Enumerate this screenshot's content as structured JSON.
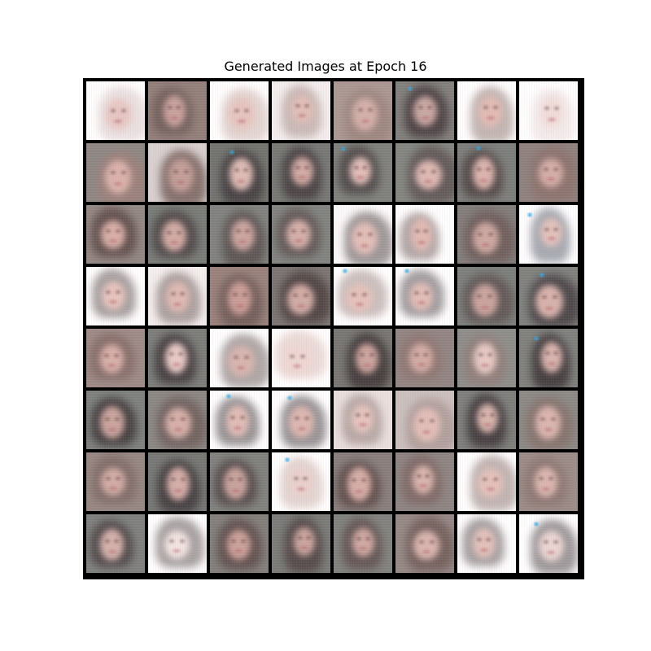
{
  "title": "Generated Images at Epoch 16",
  "grid": {
    "rows": 8,
    "cols": 8,
    "tiles": [
      {
        "bg": "#ffffff",
        "hair": "#d8c8c8",
        "skin": "#e6c6c2",
        "tone": "light"
      },
      {
        "bg": "#8f7d77",
        "hair": "#6e5c58",
        "skin": "#c7a09b",
        "tone": "mid"
      },
      {
        "bg": "#ffffff",
        "hair": "#c9b3ab",
        "skin": "#e5c3bd",
        "tone": "light"
      },
      {
        "bg": "#f2eeee",
        "hair": "#a78f88",
        "skin": "#e0bdb6",
        "tone": "light"
      },
      {
        "bg": "#a89690",
        "hair": "#9a847d",
        "skin": "#d2aea8",
        "tone": "mid"
      },
      {
        "bg": "#7d7d79",
        "hair": "#453c3e",
        "skin": "#c7a6a1",
        "tone": "dark",
        "glint": true
      },
      {
        "bg": "#ffffff",
        "hair": "#8f7a73",
        "skin": "#e1bab3",
        "tone": "light"
      },
      {
        "bg": "#ffffff",
        "hair": "#e8dcdc",
        "skin": "#f0dcd8",
        "tone": "light"
      },
      {
        "bg": "#8a8580",
        "hair": "#9b7f79",
        "skin": "#d9b1aa",
        "tone": "mid"
      },
      {
        "bg": "#d7d0cf",
        "hair": "#7a6560",
        "skin": "#c19c96",
        "tone": "mid"
      },
      {
        "bg": "#6e716c",
        "hair": "#3f3b3d",
        "skin": "#dcbab3",
        "tone": "dark",
        "glint": true
      },
      {
        "bg": "#727571",
        "hair": "#433d3f",
        "skin": "#cfa9a2",
        "tone": "dark"
      },
      {
        "bg": "#7b7f7a",
        "hair": "#4b4646",
        "skin": "#e0bdb6",
        "tone": "dark",
        "glint": true
      },
      {
        "bg": "#7f837f",
        "hair": "#5c5453",
        "skin": "#dcb7b0",
        "tone": "mid"
      },
      {
        "bg": "#787c78",
        "hair": "#4d4443",
        "skin": "#d9b2ab",
        "tone": "dark",
        "glint": true
      },
      {
        "bg": "#8b7f7b",
        "hair": "#8a716b",
        "skin": "#d3aca6",
        "tone": "mid"
      },
      {
        "bg": "#8f8581",
        "hair": "#5b4a47",
        "skin": "#d6ada6",
        "tone": "mid"
      },
      {
        "bg": "#757a75",
        "hair": "#4a4444",
        "skin": "#d0a9a2",
        "tone": "dark"
      },
      {
        "bg": "#7c807c",
        "hair": "#57504f",
        "skin": "#c9a39d",
        "tone": "mid"
      },
      {
        "bg": "#7d817d",
        "hair": "#5d5453",
        "skin": "#d3aea7",
        "tone": "mid"
      },
      {
        "bg": "#fbfafa",
        "hair": "#4e4646",
        "skin": "#e1bdb6",
        "tone": "light"
      },
      {
        "bg": "#ffffff",
        "hair": "#6f5f5c",
        "skin": "#e0b9b2",
        "tone": "light"
      },
      {
        "bg": "#7e7a77",
        "hair": "#6a5a57",
        "skin": "#cba59f",
        "tone": "mid"
      },
      {
        "bg": "#ffffff",
        "hair": "#5b6470",
        "skin": "#e2c1ba",
        "tone": "light",
        "glint": true
      },
      {
        "bg": "#ffffff",
        "hair": "#5c5251",
        "skin": "#e6c3bc",
        "tone": "light"
      },
      {
        "bg": "#f3efee",
        "hair": "#6e5f5c",
        "skin": "#deb8b1",
        "tone": "light"
      },
      {
        "bg": "#957f78",
        "hair": "#6d5a56",
        "skin": "#c89b94",
        "tone": "mid"
      },
      {
        "bg": "#77726f",
        "hair": "#4b403f",
        "skin": "#cfaaa3",
        "tone": "dark"
      },
      {
        "bg": "#ffffff",
        "hair": "#9d8b86",
        "skin": "#e4c1ba",
        "tone": "light",
        "glint": true
      },
      {
        "bg": "#ffffff",
        "hair": "#514c50",
        "skin": "#e1bcb5",
        "tone": "light",
        "glint": true
      },
      {
        "bg": "#787d79",
        "hair": "#5c5352",
        "skin": "#c8a29c",
        "tone": "mid"
      },
      {
        "bg": "#7c7f7b",
        "hair": "#454043",
        "skin": "#d6b1aa",
        "tone": "dark",
        "glint": true
      },
      {
        "bg": "#9a8984",
        "hair": "#836b66",
        "skin": "#d5aea7",
        "tone": "mid"
      },
      {
        "bg": "#777a76",
        "hair": "#3f393b",
        "skin": "#e6c9c4",
        "tone": "dark"
      },
      {
        "bg": "#ffffff",
        "hair": "#6a5f5d",
        "skin": "#d6b4ad",
        "tone": "light"
      },
      {
        "bg": "#ffffff",
        "hair": "#d9bdb6",
        "skin": "#eed6d1",
        "tone": "light"
      },
      {
        "bg": "#73746f",
        "hair": "#3e3738",
        "skin": "#caa39c",
        "tone": "dark"
      },
      {
        "bg": "#8e8380",
        "hair": "#8c746f",
        "skin": "#d1aaa3",
        "tone": "mid"
      },
      {
        "bg": "#8a8b87",
        "hair": "#8e7c77",
        "skin": "#e5c8c2",
        "tone": "mid"
      },
      {
        "bg": "#7b7e7a",
        "hair": "#3c3638",
        "skin": "#d7b3ac",
        "tone": "dark",
        "glint": true
      },
      {
        "bg": "#7a7f7b",
        "hair": "#3d3839",
        "skin": "#c8a29b",
        "tone": "dark"
      },
      {
        "bg": "#878580",
        "hair": "#6d5e5b",
        "skin": "#d4aea7",
        "tone": "mid"
      },
      {
        "bg": "#ffffff",
        "hair": "#3f3a3d",
        "skin": "#dfbbb4",
        "tone": "light",
        "glint": true
      },
      {
        "bg": "#ffffff",
        "hair": "#413b3e",
        "skin": "#dbb6af",
        "tone": "light",
        "glint": true
      },
      {
        "bg": "#e8dfdd",
        "hair": "#8f7c77",
        "skin": "#e4c3bc",
        "tone": "light"
      },
      {
        "bg": "#c9bfbd",
        "hair": "#9b8580",
        "skin": "#e1bdb6",
        "tone": "light"
      },
      {
        "bg": "#797c78",
        "hair": "#3d3739",
        "skin": "#d7b3ac",
        "tone": "dark"
      },
      {
        "bg": "#888782",
        "hair": "#837069",
        "skin": "#d9b4ad",
        "tone": "mid"
      },
      {
        "bg": "#938580",
        "hair": "#7d6a65",
        "skin": "#d0aaa3",
        "tone": "mid"
      },
      {
        "bg": "#727571",
        "hair": "#3d393b",
        "skin": "#d2aca5",
        "tone": "dark"
      },
      {
        "bg": "#7c7f7b",
        "hair": "#504747",
        "skin": "#c6a19a",
        "tone": "mid"
      },
      {
        "bg": "#ffffff",
        "hair": "#cab3ab",
        "skin": "#e9d0cb",
        "tone": "light",
        "glint": true
      },
      {
        "bg": "#857c79",
        "hair": "#5a4a47",
        "skin": "#d4aca5",
        "tone": "mid"
      },
      {
        "bg": "#8a827f",
        "hair": "#7b6662",
        "skin": "#d8b3ac",
        "tone": "mid"
      },
      {
        "bg": "#ffffff",
        "hair": "#8b7772",
        "skin": "#e3c0b9",
        "tone": "light"
      },
      {
        "bg": "#988a85",
        "hair": "#8a756f",
        "skin": "#d9b5ae",
        "tone": "mid"
      },
      {
        "bg": "#7b7f7b",
        "hair": "#4a4345",
        "skin": "#d3b0a9",
        "tone": "dark"
      },
      {
        "bg": "#ffffff",
        "hair": "#5d5454",
        "skin": "#f1e4e1",
        "tone": "light"
      },
      {
        "bg": "#7f7d79",
        "hair": "#5c4c4a",
        "skin": "#c99f98",
        "tone": "mid"
      },
      {
        "bg": "#767975",
        "hair": "#4f4545",
        "skin": "#c9a39c",
        "tone": "dark"
      },
      {
        "bg": "#7d807c",
        "hair": "#5f5150",
        "skin": "#cda7a0",
        "tone": "mid"
      },
      {
        "bg": "#928683",
        "hair": "#6f5c58",
        "skin": "#d8b4ad",
        "tone": "mid"
      },
      {
        "bg": "#ffffff",
        "hair": "#5a5354",
        "skin": "#e2c0b9",
        "tone": "light"
      },
      {
        "bg": "#ffffff",
        "hair": "#4a4447",
        "skin": "#ead5d1",
        "tone": "light",
        "glint": true
      }
    ]
  }
}
